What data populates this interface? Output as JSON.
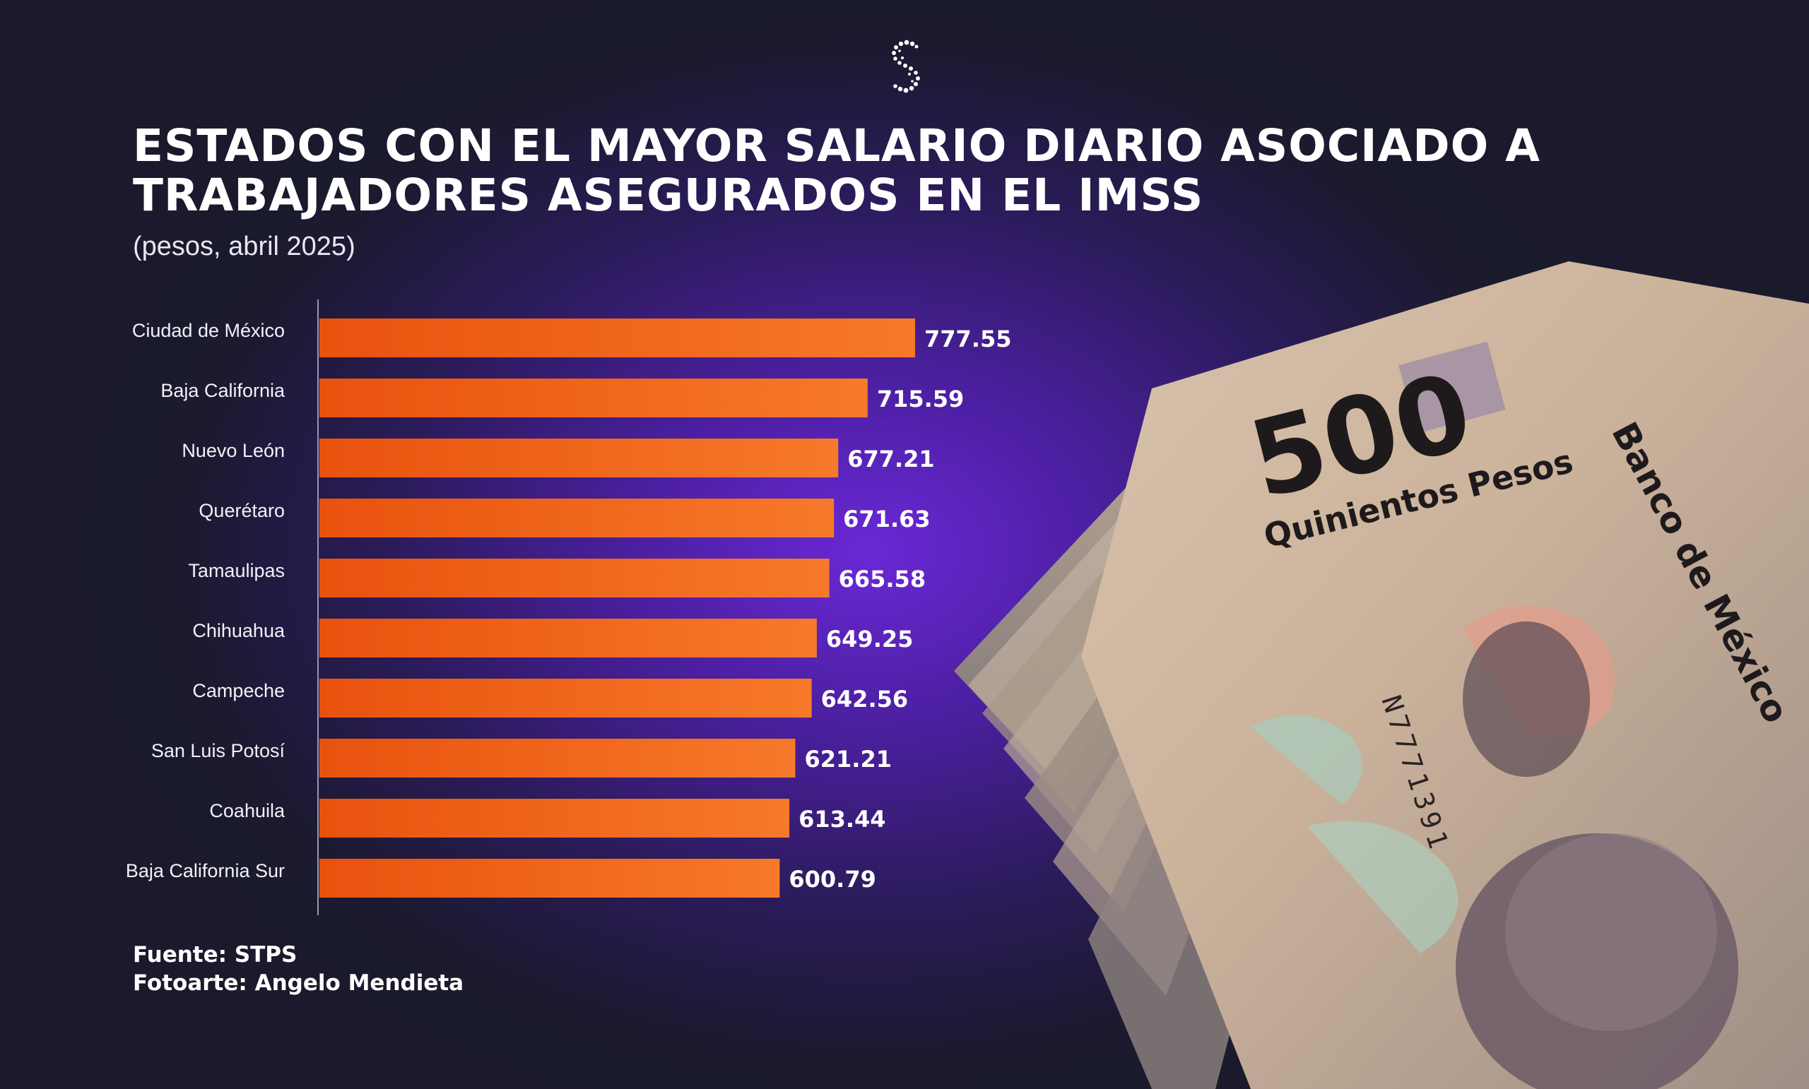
{
  "title_lines": [
    "ESTADOS CON EL MAYOR SALARIO DIARIO ASOCIADO A",
    "TRABAJADORES ASEGURADOS EN EL IMSS"
  ],
  "subtitle": "(pesos, abril 2025)",
  "footer": {
    "source": "Fuente: STPS",
    "photo_credit": "Fotoarte: Angelo Mendieta"
  },
  "banknote": {
    "denomination": "500",
    "denomination_text": "Quinientos Pesos",
    "bank": "Banco de México",
    "serial": "N7771391"
  },
  "colors": {
    "bar_start": "#e8520e",
    "bar_end": "#f7792a",
    "accent_purple": "#6a28d6",
    "background": "#1a1a2c"
  },
  "chart_data": {
    "type": "bar",
    "orientation": "horizontal",
    "categories": [
      "Ciudad de México",
      "Baja California",
      "Nuevo León",
      "Querétaro",
      "Tamaulipas",
      "Chihuahua",
      "Campeche",
      "San Luis Potosí",
      "Coahuila",
      "Baja California Sur"
    ],
    "values": [
      777.55,
      715.59,
      677.21,
      671.63,
      665.58,
      649.25,
      642.56,
      621.21,
      613.44,
      600.79
    ],
    "value_labels": [
      "777.55",
      "715.59",
      "677.21",
      "671.63",
      "665.58",
      "649.25",
      "642.56",
      "621.21",
      "613.44",
      "600.79"
    ],
    "xlim": [
      0,
      777.55
    ],
    "grid": false,
    "legend": "none"
  }
}
